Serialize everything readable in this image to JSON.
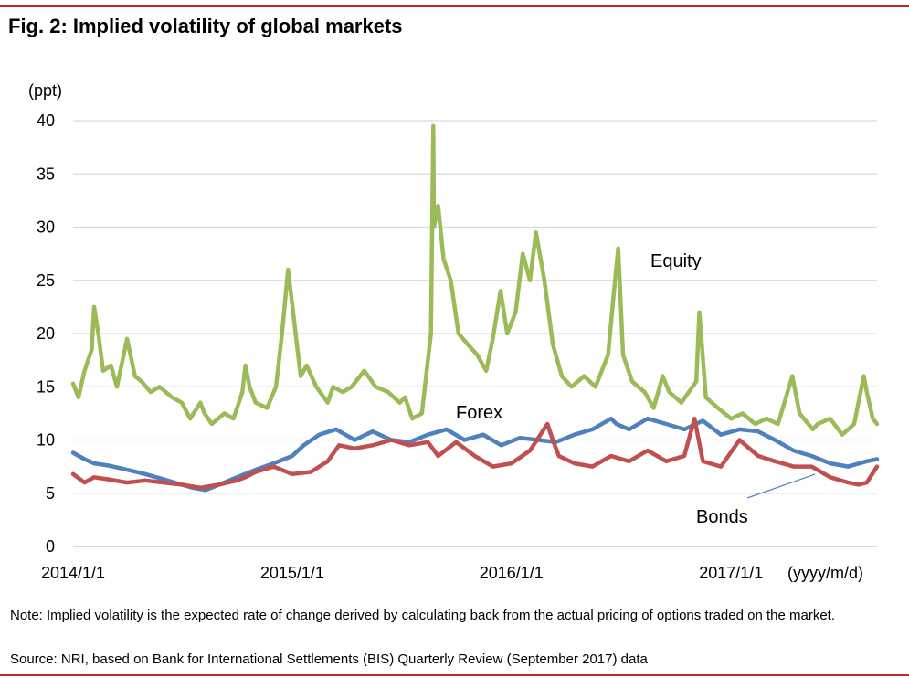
{
  "figure": {
    "title": "Fig. 2: Implied volatility of global markets",
    "note": "Note: Implied volatility is the expected rate of change derived by calculating back from the actual pricing of options traded on the market.",
    "source": "Source: NRI, based on Bank for International Settlements (BIS) Quarterly Review (September 2017) data"
  },
  "chart_data": {
    "type": "line",
    "ylabel": "(ppt)",
    "xlabel": "(yyyy/m/d)",
    "ylim": [
      0,
      40
    ],
    "yticks": [
      "0",
      "5",
      "10",
      "15",
      "20",
      "25",
      "30",
      "35",
      "40"
    ],
    "xticks": [
      "2014/1/1",
      "2015/1/1",
      "2016/1/1",
      "2017/1/1"
    ],
    "grid": true,
    "series": [
      {
        "name": "Equity",
        "color": "#9bbb59",
        "x": [
          "2014-01-01",
          "2014-01-10",
          "2014-01-20",
          "2014-02-01",
          "2014-02-05",
          "2014-02-12",
          "2014-02-20",
          "2014-03-05",
          "2014-03-15",
          "2014-04-01",
          "2014-04-14",
          "2014-04-25",
          "2014-05-10",
          "2014-05-25",
          "2014-06-15",
          "2014-07-01",
          "2014-07-15",
          "2014-08-01",
          "2014-08-08",
          "2014-08-20",
          "2014-09-10",
          "2014-09-25",
          "2014-10-10",
          "2014-10-15",
          "2014-10-22",
          "2014-11-01",
          "2014-11-20",
          "2014-12-05",
          "2014-12-15",
          "2014-12-25",
          "2015-01-15",
          "2015-01-25",
          "2015-02-10",
          "2015-03-01",
          "2015-03-10",
          "2015-03-26",
          "2015-04-10",
          "2015-05-01",
          "2015-05-20",
          "2015-06-10",
          "2015-06-29",
          "2015-07-08",
          "2015-07-20",
          "2015-08-05",
          "2015-08-20",
          "2015-08-24",
          "2015-08-25",
          "2015-09-01",
          "2015-09-10",
          "2015-09-22",
          "2015-10-05",
          "2015-10-20",
          "2015-11-05",
          "2015-11-20",
          "2015-12-01",
          "2015-12-14",
          "2015-12-25",
          "2016-01-08",
          "2016-01-20",
          "2016-02-01",
          "2016-02-11",
          "2016-02-25",
          "2016-03-10",
          "2016-03-25",
          "2016-04-10",
          "2016-05-01",
          "2016-05-20",
          "2016-06-10",
          "2016-06-20",
          "2016-06-27",
          "2016-07-05",
          "2016-07-20",
          "2016-08-10",
          "2016-08-25",
          "2016-09-09",
          "2016-09-20",
          "2016-10-10",
          "2016-11-04",
          "2016-11-09",
          "2016-11-20",
          "2016-12-10",
          "2017-01-01",
          "2017-01-20",
          "2017-02-10",
          "2017-03-01",
          "2017-03-20",
          "2017-04-13",
          "2017-04-25",
          "2017-05-17",
          "2017-05-25",
          "2017-06-15",
          "2017-07-05",
          "2017-07-25",
          "2017-08-10",
          "2017-08-15",
          "2017-08-25",
          "2017-09-01"
        ],
        "values": [
          15.3,
          14.0,
          16.5,
          18.5,
          22.5,
          20.0,
          16.5,
          17.0,
          15.0,
          19.5,
          16.0,
          15.5,
          14.5,
          15.0,
          14.0,
          13.5,
          12.0,
          13.5,
          12.5,
          11.5,
          12.5,
          12.0,
          14.5,
          17.0,
          15.0,
          13.5,
          13.0,
          15.0,
          20.0,
          26.0,
          16.0,
          17.0,
          15.0,
          13.5,
          15.0,
          14.5,
          15.0,
          16.5,
          15.0,
          14.5,
          13.5,
          14.0,
          12.0,
          12.5,
          20.0,
          39.5,
          30.0,
          32.0,
          27.0,
          25.0,
          20.0,
          19.0,
          18.0,
          16.5,
          19.5,
          24.0,
          20.0,
          22.0,
          27.5,
          25.0,
          29.5,
          25.0,
          19.0,
          16.0,
          15.0,
          16.0,
          15.0,
          18.0,
          24.0,
          28.0,
          18.0,
          15.5,
          14.5,
          13.0,
          16.0,
          14.5,
          13.5,
          15.5,
          22.0,
          14.0,
          13.0,
          12.0,
          12.5,
          11.5,
          12.0,
          11.5,
          16.0,
          12.5,
          11.0,
          11.5,
          12.0,
          10.5,
          11.5,
          16.0,
          14.5,
          12.0,
          11.5
        ]
      },
      {
        "name": "Forex",
        "color": "#4f81bd",
        "x": [
          "2014-01-01",
          "2014-01-20",
          "2014-02-05",
          "2014-03-01",
          "2014-04-01",
          "2014-05-01",
          "2014-06-01",
          "2014-07-01",
          "2014-07-20",
          "2014-08-10",
          "2014-09-01",
          "2014-10-01",
          "2014-11-01",
          "2014-12-01",
          "2015-01-01",
          "2015-01-20",
          "2015-02-15",
          "2015-03-15",
          "2015-04-15",
          "2015-05-15",
          "2015-06-15",
          "2015-07-15",
          "2015-08-15",
          "2015-09-15",
          "2015-10-15",
          "2015-11-15",
          "2015-12-15",
          "2016-01-15",
          "2016-02-15",
          "2016-03-15",
          "2016-04-15",
          "2016-05-15",
          "2016-06-15",
          "2016-06-24",
          "2016-07-15",
          "2016-08-15",
          "2016-09-15",
          "2016-10-15",
          "2016-11-15",
          "2016-12-15",
          "2017-01-15",
          "2017-02-15",
          "2017-03-15",
          "2017-04-15",
          "2017-05-15",
          "2017-06-15",
          "2017-07-15",
          "2017-08-15",
          "2017-09-01"
        ],
        "values": [
          8.8,
          8.2,
          7.8,
          7.6,
          7.2,
          6.8,
          6.3,
          5.8,
          5.5,
          5.3,
          5.8,
          6.5,
          7.2,
          7.8,
          8.5,
          9.5,
          10.5,
          11.0,
          10.0,
          10.8,
          10.0,
          9.8,
          10.5,
          11.0,
          10.0,
          10.5,
          9.5,
          10.2,
          10.0,
          9.8,
          10.5,
          11.0,
          12.0,
          11.5,
          11.0,
          12.0,
          11.5,
          11.0,
          11.8,
          10.5,
          11.0,
          10.8,
          10.0,
          9.0,
          8.5,
          7.8,
          7.5,
          8.0,
          8.2
        ]
      },
      {
        "name": "Bonds",
        "color": "#c0504d",
        "x": [
          "2014-01-01",
          "2014-01-20",
          "2014-02-05",
          "2014-03-01",
          "2014-04-01",
          "2014-05-01",
          "2014-06-01",
          "2014-07-01",
          "2014-08-01",
          "2014-09-01",
          "2014-10-01",
          "2014-10-15",
          "2014-11-01",
          "2014-12-01",
          "2015-01-01",
          "2015-02-01",
          "2015-03-01",
          "2015-03-20",
          "2015-04-15",
          "2015-05-15",
          "2015-06-15",
          "2015-07-15",
          "2015-08-15",
          "2015-09-01",
          "2015-10-01",
          "2015-11-01",
          "2015-12-01",
          "2016-01-01",
          "2016-02-01",
          "2016-03-01",
          "2016-03-10",
          "2016-03-20",
          "2016-04-15",
          "2016-05-15",
          "2016-06-15",
          "2016-07-15",
          "2016-08-15",
          "2016-09-15",
          "2016-10-15",
          "2016-11-01",
          "2016-11-15",
          "2016-12-15",
          "2017-01-15",
          "2017-02-15",
          "2017-03-15",
          "2017-04-15",
          "2017-05-15",
          "2017-06-15",
          "2017-07-15",
          "2017-08-01",
          "2017-08-15",
          "2017-09-01"
        ],
        "values": [
          6.8,
          6.0,
          6.5,
          6.3,
          6.0,
          6.2,
          6.0,
          5.8,
          5.5,
          5.8,
          6.2,
          6.5,
          7.0,
          7.5,
          6.8,
          7.0,
          8.0,
          9.5,
          9.2,
          9.5,
          10.0,
          9.5,
          9.8,
          8.5,
          9.8,
          8.5,
          7.5,
          7.8,
          9.0,
          11.5,
          10.0,
          8.5,
          7.8,
          7.5,
          8.5,
          8.0,
          9.0,
          8.0,
          8.5,
          12.0,
          8.0,
          7.5,
          10.0,
          8.5,
          8.0,
          7.5,
          7.5,
          6.5,
          6.0,
          5.8,
          6.0,
          7.5
        ]
      }
    ],
    "annotations": {
      "equity": "Equity",
      "forex": "Forex",
      "bonds": "Bonds"
    }
  }
}
